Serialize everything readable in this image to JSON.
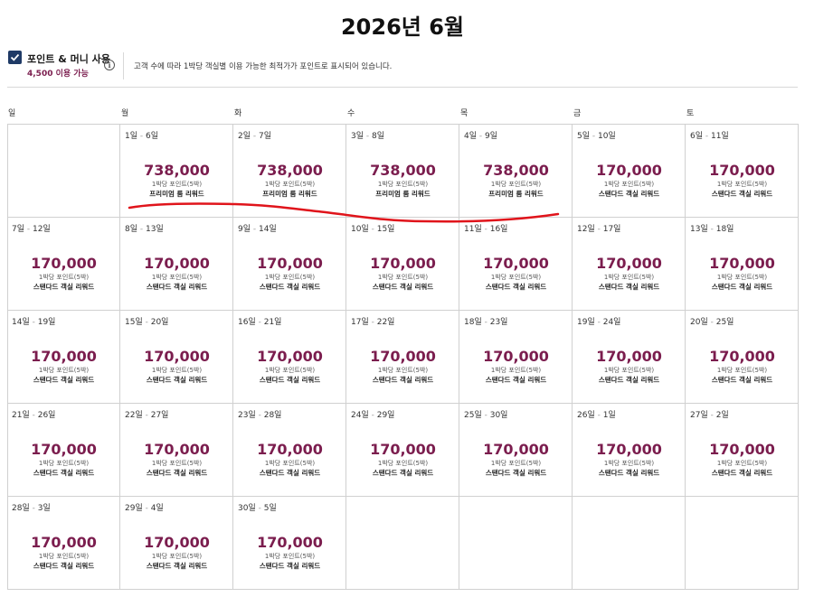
{
  "title": "2026년 6월",
  "points_money": {
    "label": "포인트 & 머니 사용",
    "available": "4,500 이용 가능",
    "checked": true,
    "info_icon": "info-icon"
  },
  "description": "고객 수에 따라 1박당 객실별 이용 가능한 최적가가 포인트로 표시되어 있습니다.",
  "weekdays": [
    "일",
    "월",
    "화",
    "수",
    "목",
    "금",
    "토"
  ],
  "colors": {
    "price": "#7b1d4e",
    "checkbox": "#1f3a66",
    "annotation": "#e0141b"
  },
  "cells": [
    {
      "col": 1,
      "row": 0,
      "start": "1일",
      "end": "6일",
      "price": "738,000",
      "per_night": "1박당 포인트(5박)",
      "room": "프리미엄 룸 리워드"
    },
    {
      "col": 2,
      "row": 0,
      "start": "2일",
      "end": "7일",
      "price": "738,000",
      "per_night": "1박당 포인트(5박)",
      "room": "프리미엄 룸 리워드"
    },
    {
      "col": 3,
      "row": 0,
      "start": "3일",
      "end": "8일",
      "price": "738,000",
      "per_night": "1박당 포인트(5박)",
      "room": "프리미엄 룸 리워드"
    },
    {
      "col": 4,
      "row": 0,
      "start": "4일",
      "end": "9일",
      "price": "738,000",
      "per_night": "1박당 포인트(5박)",
      "room": "프리미엄 룸 리워드"
    },
    {
      "col": 5,
      "row": 0,
      "start": "5일",
      "end": "10일",
      "price": "170,000",
      "per_night": "1박당 포인트(5박)",
      "room": "스탠다드 객실 리워드"
    },
    {
      "col": 6,
      "row": 0,
      "start": "6일",
      "end": "11일",
      "price": "170,000",
      "per_night": "1박당 포인트(5박)",
      "room": "스탠다드 객실 리워드"
    },
    {
      "col": 0,
      "row": 1,
      "start": "7일",
      "end": "12일",
      "price": "170,000",
      "per_night": "1박당 포인트(5박)",
      "room": "스탠다드 객실 리워드"
    },
    {
      "col": 1,
      "row": 1,
      "start": "8일",
      "end": "13일",
      "price": "170,000",
      "per_night": "1박당 포인트(5박)",
      "room": "스탠다드 객실 리워드"
    },
    {
      "col": 2,
      "row": 1,
      "start": "9일",
      "end": "14일",
      "price": "170,000",
      "per_night": "1박당 포인트(5박)",
      "room": "스탠다드 객실 리워드"
    },
    {
      "col": 3,
      "row": 1,
      "start": "10일",
      "end": "15일",
      "price": "170,000",
      "per_night": "1박당 포인트(5박)",
      "room": "스탠다드 객실 리워드"
    },
    {
      "col": 4,
      "row": 1,
      "start": "11일",
      "end": "16일",
      "price": "170,000",
      "per_night": "1박당 포인트(5박)",
      "room": "스탠다드 객실 리워드"
    },
    {
      "col": 5,
      "row": 1,
      "start": "12일",
      "end": "17일",
      "price": "170,000",
      "per_night": "1박당 포인트(5박)",
      "room": "스탠다드 객실 리워드"
    },
    {
      "col": 6,
      "row": 1,
      "start": "13일",
      "end": "18일",
      "price": "170,000",
      "per_night": "1박당 포인트(5박)",
      "room": "스탠다드 객실 리워드"
    },
    {
      "col": 0,
      "row": 2,
      "start": "14일",
      "end": "19일",
      "price": "170,000",
      "per_night": "1박당 포인트(5박)",
      "room": "스탠다드 객실 리워드"
    },
    {
      "col": 1,
      "row": 2,
      "start": "15일",
      "end": "20일",
      "price": "170,000",
      "per_night": "1박당 포인트(5박)",
      "room": "스탠다드 객실 리워드"
    },
    {
      "col": 2,
      "row": 2,
      "start": "16일",
      "end": "21일",
      "price": "170,000",
      "per_night": "1박당 포인트(5박)",
      "room": "스탠다드 객실 리워드"
    },
    {
      "col": 3,
      "row": 2,
      "start": "17일",
      "end": "22일",
      "price": "170,000",
      "per_night": "1박당 포인트(5박)",
      "room": "스탠다드 객실 리워드"
    },
    {
      "col": 4,
      "row": 2,
      "start": "18일",
      "end": "23일",
      "price": "170,000",
      "per_night": "1박당 포인트(5박)",
      "room": "스탠다드 객실 리워드"
    },
    {
      "col": 5,
      "row": 2,
      "start": "19일",
      "end": "24일",
      "price": "170,000",
      "per_night": "1박당 포인트(5박)",
      "room": "스탠다드 객실 리워드"
    },
    {
      "col": 6,
      "row": 2,
      "start": "20일",
      "end": "25일",
      "price": "170,000",
      "per_night": "1박당 포인트(5박)",
      "room": "스탠다드 객실 리워드"
    },
    {
      "col": 0,
      "row": 3,
      "start": "21일",
      "end": "26일",
      "price": "170,000",
      "per_night": "1박당 포인트(5박)",
      "room": "스탠다드 객실 리워드"
    },
    {
      "col": 1,
      "row": 3,
      "start": "22일",
      "end": "27일",
      "price": "170,000",
      "per_night": "1박당 포인트(5박)",
      "room": "스탠다드 객실 리워드"
    },
    {
      "col": 2,
      "row": 3,
      "start": "23일",
      "end": "28일",
      "price": "170,000",
      "per_night": "1박당 포인트(5박)",
      "room": "스탠다드 객실 리워드"
    },
    {
      "col": 3,
      "row": 3,
      "start": "24일",
      "end": "29일",
      "price": "170,000",
      "per_night": "1박당 포인트(5박)",
      "room": "스탠다드 객실 리워드"
    },
    {
      "col": 4,
      "row": 3,
      "start": "25일",
      "end": "30일",
      "price": "170,000",
      "per_night": "1박당 포인트(5박)",
      "room": "스탠다드 객실 리워드"
    },
    {
      "col": 5,
      "row": 3,
      "start": "26일",
      "end": "1일",
      "price": "170,000",
      "per_night": "1박당 포인트(5박)",
      "room": "스탠다드 객실 리워드"
    },
    {
      "col": 6,
      "row": 3,
      "start": "27일",
      "end": "2일",
      "price": "170,000",
      "per_night": "1박당 포인트(5박)",
      "room": "스탠다드 객실 리워드"
    },
    {
      "col": 0,
      "row": 4,
      "start": "28일",
      "end": "3일",
      "price": "170,000",
      "per_night": "1박당 포인트(5박)",
      "room": "스탠다드 객실 리워드"
    },
    {
      "col": 1,
      "row": 4,
      "start": "29일",
      "end": "4일",
      "price": "170,000",
      "per_night": "1박당 포인트(5박)",
      "room": "스탠다드 객실 리워드"
    },
    {
      "col": 2,
      "row": 4,
      "start": "30일",
      "end": "5일",
      "price": "170,000",
      "per_night": "1박당 포인트(5박)",
      "room": "스탠다드 객실 리워드"
    }
  ]
}
